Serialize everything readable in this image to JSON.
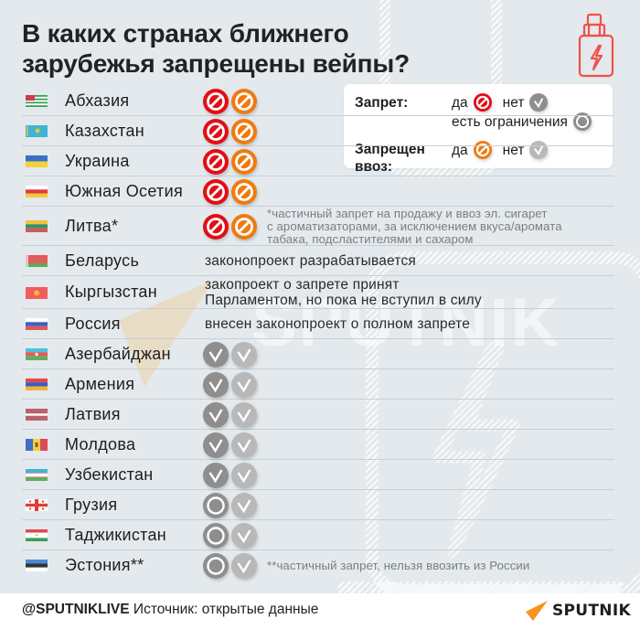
{
  "header": {
    "title_line1": "В каких странах ближнего",
    "title_line2": "зарубежья запрещены вейпы?",
    "icon": "vape-icon",
    "accent_color": "#f0504a"
  },
  "legend": {
    "ban_label": "Запрет:",
    "ban_yes": "да",
    "ban_no": "нет",
    "ban_limited": "есть ограничения",
    "import_label_line1": "Запрещен",
    "import_label_line2": "ввоз:",
    "import_yes": "да",
    "import_no": "нет"
  },
  "colors": {
    "ban_yes": "#e30d16",
    "import_yes": "#f07a10",
    "ban_no": "#8e8e8e",
    "import_no": "#b8b8b8",
    "background": "#e3e9ec"
  },
  "countries": [
    {
      "name": "Абхазия",
      "flag": "abkhazia-flag",
      "ban": "yes",
      "import": "yes",
      "note": ""
    },
    {
      "name": "Казахстан",
      "flag": "kazakhstan-flag",
      "ban": "yes",
      "import": "yes",
      "note": ""
    },
    {
      "name": "Украина",
      "flag": "ukraine-flag",
      "ban": "yes",
      "import": "yes",
      "note": ""
    },
    {
      "name": "Южная Осетия",
      "flag": "south-ossetia-flag",
      "ban": "yes",
      "import": "yes",
      "note": ""
    },
    {
      "name": "Литва*",
      "flag": "lithuania-flag",
      "ban": "yes",
      "import": "yes",
      "footnote_lines": [
        "*частичный запрет на продажу и ввоз эл. сигарет",
        "с ароматизаторами, за исключением вкуса/аромата",
        "табака, подсластителями и сахаром"
      ]
    },
    {
      "name": "Беларусь",
      "flag": "belarus-flag",
      "note_lines": [
        "законопроект разрабатывается"
      ]
    },
    {
      "name": "Кыргызстан",
      "flag": "kyrgyzstan-flag",
      "note_lines": [
        "закопроект о запрете принят",
        "Парламентом, но пока не вступил в силу"
      ]
    },
    {
      "name": "Россия",
      "flag": "russia-flag",
      "note_lines": [
        "внесен законопроект о полном запрете"
      ]
    },
    {
      "name": "Азербайджан",
      "flag": "azerbaijan-flag",
      "ban": "no",
      "import": "no"
    },
    {
      "name": "Армения",
      "flag": "armenia-flag",
      "ban": "no",
      "import": "no"
    },
    {
      "name": "Латвия",
      "flag": "latvia-flag",
      "ban": "no",
      "import": "no"
    },
    {
      "name": "Молдова",
      "flag": "moldova-flag",
      "ban": "no",
      "import": "no"
    },
    {
      "name": "Узбекистан",
      "flag": "uzbekistan-flag",
      "ban": "no",
      "import": "no"
    },
    {
      "name": "Грузия",
      "flag": "georgia-flag",
      "ban": "limited",
      "import": "no"
    },
    {
      "name": "Таджикистан",
      "flag": "tajikistan-flag",
      "ban": "limited",
      "import": "no"
    },
    {
      "name": "Эстония**",
      "flag": "estonia-flag",
      "ban": "limited",
      "import": "no",
      "footnote_lines": [
        "**частичный запрет, нельзя ввозить из России"
      ]
    }
  ],
  "footer": {
    "handle": "@SPUTNIKLIVE",
    "source": "Источник: открытые данные",
    "logo_text": "SPUTNIK"
  }
}
